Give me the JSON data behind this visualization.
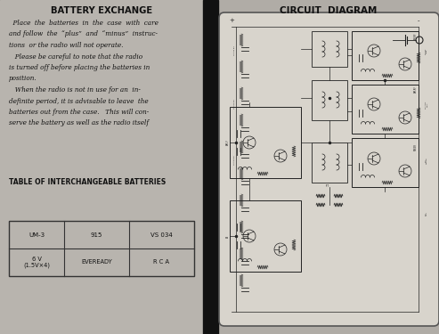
{
  "bg_color": "#1a1a1a",
  "left_bg": "#b8b4ae",
  "right_bg": "#b0aca6",
  "spine_color": "#111111",
  "title_left": "BATTERY EXCHANGE",
  "body_text": [
    "  Place  the  batteries  in  the  case  with  care",
    "and follow  the  “plus”  and  “minus”  instruc-",
    "tions  or the radio will not operate.",
    "   Please be careful to note that the radio",
    "is turned off before placing the batteries in",
    "position.",
    "   When the radio is not in use for an  in-",
    "definite period, it is advisable to leave  the",
    "batteries out from the case.   This will con-",
    "serve the battery as well as the radio itself"
  ],
  "table_title": "TABLE OF INTERCHANGEABLE BATTERIES",
  "table_headers": [
    "6 V\n(1.5V×4)",
    "EVEREADY",
    "R C A"
  ],
  "table_values": [
    "UM-3",
    "915",
    "VS 034"
  ],
  "title_right": "CIRCUIT  DIAGRAM",
  "text_color": "#111111",
  "circuit_bg": "#e0dcd4",
  "circuit_border": "#555555",
  "lc": "#222222"
}
